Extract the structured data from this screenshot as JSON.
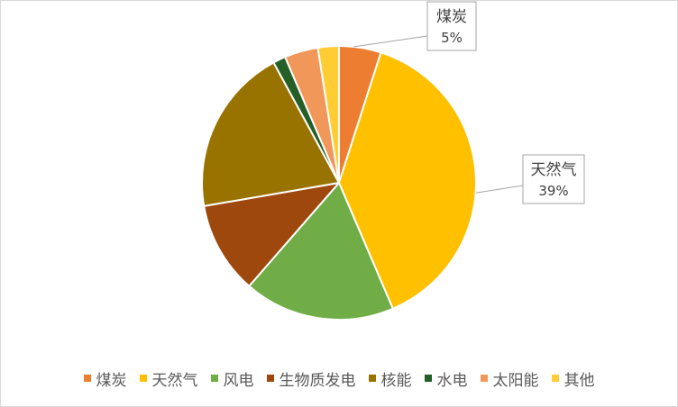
{
  "chart_data": {
    "type": "pie",
    "categories": [
      "煤炭",
      "天然气",
      "风电",
      "生物质发电",
      "核能",
      "水电",
      "太阳能",
      "其他"
    ],
    "values": [
      5,
      39,
      18,
      11,
      20,
      1.5,
      4,
      2.5
    ],
    "colors": [
      "#ED7D31",
      "#FFC000",
      "#70AD47",
      "#9E480E",
      "#997300",
      "#255E27",
      "#F1975A",
      "#FFCD33"
    ],
    "data_labels": [
      {
        "category": "煤炭",
        "label": "煤炭",
        "value_text": "5%"
      },
      {
        "category": "天然气",
        "label": "天然气",
        "value_text": "39%"
      }
    ],
    "legend_position": "bottom",
    "title": ""
  }
}
